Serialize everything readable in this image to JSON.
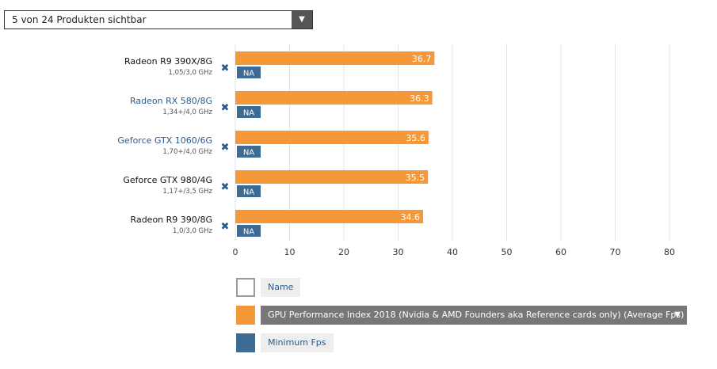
{
  "selector": {
    "label": "5 von 24 Produkten sichtbar",
    "arrow": "▼"
  },
  "remove_glyph": "✖",
  "chart_data": {
    "type": "bar",
    "orientation": "horizontal",
    "categories": [
      {
        "name": "Radeon R9 390X/8G",
        "sub": "1,05/3,0 GHz",
        "linked": false
      },
      {
        "name": "Radeon RX 580/8G",
        "sub": "1,34+/4,0 GHz",
        "linked": true
      },
      {
        "name": "Geforce GTX 1060/6G",
        "sub": "1,70+/4,0 GHz",
        "linked": true
      },
      {
        "name": "Geforce GTX 980/4G",
        "sub": "1,17+/3,5 GHz",
        "linked": false
      },
      {
        "name": "Radeon R9 390/8G",
        "sub": "1,0/3,0 GHz",
        "linked": false
      }
    ],
    "series": [
      {
        "name": "GPU Performance Index 2018 (Nvidia & AMD Founders aka Reference cards only) (Average Fps)",
        "color": "#f5983a",
        "values": [
          36.7,
          36.3,
          35.6,
          35.5,
          34.6
        ]
      },
      {
        "name": "Minimum Fps",
        "color": "#3e6b94",
        "values": [
          "NA",
          "NA",
          "NA",
          "NA",
          "NA"
        ]
      }
    ],
    "xlim": [
      0,
      80
    ],
    "xticks": [
      0,
      10,
      20,
      30,
      40,
      50,
      60,
      70,
      80
    ],
    "grid": true,
    "xlabel": "",
    "ylabel": "",
    "title": ""
  },
  "legend": {
    "name_label": "Name",
    "avg_label": "GPU Performance Index 2018 (Nvidia & AMD Founders aka Reference cards only) (Average Fps)",
    "min_label": "Minimum Fps",
    "dropdown_arrow": "▼"
  },
  "colors": {
    "orange": "#f5983a",
    "blue": "#3e6b94",
    "link": "#2c5a8c"
  }
}
